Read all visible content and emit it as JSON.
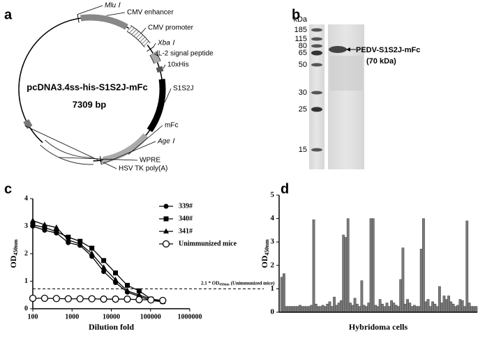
{
  "panel_labels": [
    "a",
    "b",
    "c",
    "d"
  ],
  "plasmid": {
    "name": "pcDNA3.4ss-his-S1S2J-mFc",
    "size": "7309 bp",
    "features": [
      "CMV enhancer",
      "CMV promoter",
      "IL-2 signal peptide",
      "10xHis",
      "S1S2J",
      "mFc",
      "WPRE",
      "HSV TK poly(A)"
    ],
    "sites": [
      "Mlu Ⅰ",
      "Xba Ⅰ",
      "Age Ⅰ"
    ]
  },
  "gel": {
    "unit": "kDa",
    "markers": [
      185,
      115,
      80,
      65,
      50,
      30,
      25,
      15
    ],
    "band_label": "PEDV-S1S2J-mFc",
    "band_size": "(70 kDa)"
  },
  "chart_data": [
    {
      "type": "line",
      "xlabel": "Dilution fold",
      "ylabel": "OD",
      "ylabel_sub": "450nm",
      "log_x": true,
      "x": [
        100,
        200,
        400,
        800,
        1600,
        3200,
        6400,
        12800,
        25600,
        51200,
        102400,
        204800
      ],
      "xlim": [
        100,
        1000000
      ],
      "xticks": [
        100,
        1000,
        10000,
        100000,
        1000000
      ],
      "ylim": [
        0,
        4
      ],
      "yticks": [
        0,
        1,
        2,
        3,
        4
      ],
      "series": [
        {
          "name": "339#",
          "color": "#000000",
          "marker": "circle",
          "values": [
            3.0,
            2.85,
            2.75,
            2.4,
            2.3,
            1.9,
            1.35,
            0.95,
            0.6,
            0.45,
            0.3,
            0.25
          ]
        },
        {
          "name": "340#",
          "color": "#000000",
          "marker": "square",
          "values": [
            3.05,
            2.95,
            2.8,
            2.6,
            2.45,
            2.2,
            1.75,
            1.3,
            0.85,
            0.65,
            0.35,
            0.3
          ]
        },
        {
          "name": "341#",
          "color": "#000000",
          "marker": "triangle",
          "values": [
            3.2,
            3.05,
            2.95,
            2.5,
            2.35,
            2.0,
            1.5,
            1.05,
            0.65,
            0.5,
            0.35,
            0.25
          ]
        },
        {
          "name": "Unimmunized mice",
          "color": "#000000",
          "marker": "open-circle",
          "values": [
            0.38,
            0.38,
            0.37,
            0.36,
            0.36,
            0.36,
            0.35,
            0.35,
            0.35,
            0.33,
            0.32,
            0.3
          ]
        }
      ],
      "annotation": {
        "text": "2.1 * OD",
        "sub": "450nm",
        "rest": "(Unimmunized mice)",
        "value": 0.72
      }
    },
    {
      "type": "bar",
      "xlabel": "Hybridoma cells",
      "ylabel": "OD",
      "ylabel_sub": "450nm",
      "color": "#7a7a7a",
      "ylim": [
        0,
        5
      ],
      "yticks": [
        0,
        1,
        2,
        3,
        4,
        5
      ],
      "values": [
        1.5,
        1.65,
        0.25,
        0.25,
        0.25,
        0.25,
        0.25,
        0.25,
        0.3,
        0.25,
        0.25,
        0.25,
        0.25,
        0.3,
        3.95,
        0.35,
        0.25,
        0.25,
        0.3,
        0.25,
        0.35,
        0.45,
        0.25,
        0.65,
        0.3,
        0.4,
        0.5,
        3.3,
        3.2,
        4.0,
        0.4,
        0.3,
        0.6,
        0.35,
        0.25,
        1.35,
        0.3,
        0.25,
        0.4,
        4.0,
        4.0,
        0.3,
        0.25,
        0.55,
        0.35,
        0.25,
        0.4,
        0.25,
        0.5,
        0.4,
        0.3,
        0.25,
        1.4,
        2.75,
        0.35,
        0.55,
        0.4,
        0.25,
        0.3,
        0.25,
        0.25,
        2.7,
        4.0,
        0.45,
        0.55,
        0.25,
        0.45,
        0.35,
        0.25,
        1.1,
        0.4,
        0.7,
        0.55,
        0.7,
        0.45,
        0.35,
        0.25,
        0.3,
        0.55,
        0.5,
        0.25,
        3.9,
        0.4,
        0.25,
        0.25,
        0.25
      ]
    }
  ]
}
